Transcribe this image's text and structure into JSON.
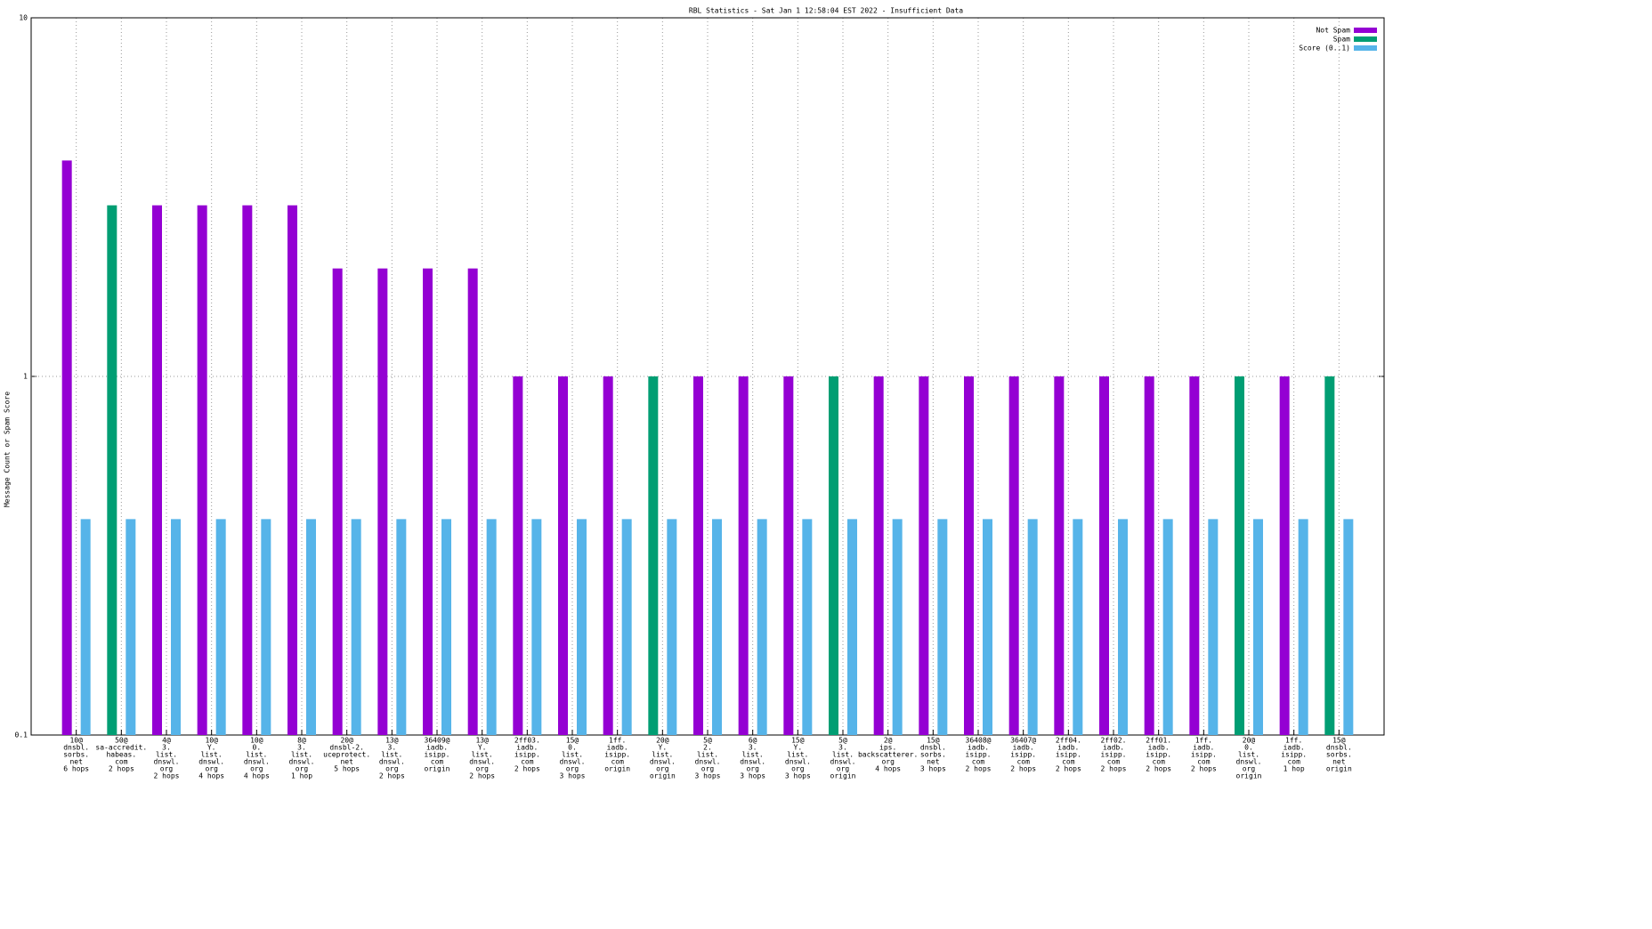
{
  "chart_data": {
    "type": "bar",
    "title": "RBL Statistics - Sat Jan  1 12:58:04 EST 2022 - Insufficient Data",
    "y_label": "Message Count or Spam Score",
    "log_y": true,
    "grid": true,
    "legend_position": "top-right",
    "ylim": [
      0.1,
      10
    ],
    "yticks": [
      0.1,
      1,
      10
    ],
    "categories": [
      [
        "10@",
        "dnsbl.",
        "sorbs.",
        "net",
        "6 hops"
      ],
      [
        "50@",
        "sa-accredit.",
        "habeas.",
        "com",
        "2 hops"
      ],
      [
        "4@",
        "3.",
        "list.",
        "dnswl.",
        "org",
        "2 hops"
      ],
      [
        "10@",
        "Y.",
        "list.",
        "dnswl.",
        "org",
        "4 hops"
      ],
      [
        "10@",
        "0.",
        "list.",
        "dnswl.",
        "org",
        "4 hops"
      ],
      [
        "8@",
        "3.",
        "list.",
        "dnswl.",
        "org",
        "1 hop"
      ],
      [
        "20@",
        "dnsbl-2.",
        "uceprotect.",
        "net",
        "5 hops"
      ],
      [
        "13@",
        "3.",
        "list.",
        "dnswl.",
        "org",
        "2 hops"
      ],
      [
        "36409@",
        "iadb.",
        "isipp.",
        "com",
        "origin"
      ],
      [
        "13@",
        "Y.",
        "list.",
        "dnswl.",
        "org",
        "2 hops"
      ],
      [
        "2ff03.",
        "iadb.",
        "isipp.",
        "com",
        "2 hops"
      ],
      [
        "15@",
        "0.",
        "list.",
        "dnswl.",
        "org",
        "3 hops"
      ],
      [
        "1ff.",
        "iadb.",
        "isipp.",
        "com",
        "origin"
      ],
      [
        "20@",
        "Y.",
        "list.",
        "dnswl.",
        "org",
        "origin"
      ],
      [
        "5@",
        "2.",
        "list.",
        "dnswl.",
        "org",
        "3 hops"
      ],
      [
        "6@",
        "3.",
        "list.",
        "dnswl.",
        "org",
        "3 hops"
      ],
      [
        "15@",
        "Y.",
        "list.",
        "dnswl.",
        "org",
        "3 hops"
      ],
      [
        "5@",
        "3.",
        "list.",
        "dnswl.",
        "org",
        "origin"
      ],
      [
        "2@",
        "ips.",
        "backscatterer.",
        "org",
        "4 hops"
      ],
      [
        "15@",
        "dnsbl.",
        "sorbs.",
        "net",
        "3 hops"
      ],
      [
        "36408@",
        "iadb.",
        "isipp.",
        "com",
        "2 hops"
      ],
      [
        "36407@",
        "iadb.",
        "isipp.",
        "com",
        "2 hops"
      ],
      [
        "2ff04.",
        "iadb.",
        "isipp.",
        "com",
        "2 hops"
      ],
      [
        "2ff02.",
        "iadb.",
        "isipp.",
        "com",
        "2 hops"
      ],
      [
        "2ff01.",
        "iadb.",
        "isipp.",
        "com",
        "2 hops"
      ],
      [
        "1ff.",
        "iadb.",
        "isipp.",
        "com",
        "2 hops"
      ],
      [
        "20@",
        "0.",
        "list.",
        "dnswl.",
        "org",
        "origin"
      ],
      [
        "1ff.",
        "iadb.",
        "isipp.",
        "com",
        "1 hop"
      ],
      [
        "15@",
        "dnsbl.",
        "sorbs.",
        "net",
        "origin"
      ]
    ],
    "series": [
      {
        "name": "Not Spam",
        "color": "#9400d3",
        "values": [
          4,
          null,
          3,
          3,
          3,
          3,
          2,
          2,
          2,
          2,
          1,
          1,
          1,
          null,
          1,
          1,
          1,
          null,
          1,
          1,
          1,
          1,
          1,
          1,
          1,
          1,
          null,
          1,
          null
        ]
      },
      {
        "name": "Spam",
        "color": "#009e73",
        "values": [
          null,
          3,
          null,
          null,
          null,
          null,
          null,
          null,
          null,
          null,
          null,
          null,
          null,
          1,
          null,
          null,
          null,
          1,
          null,
          null,
          null,
          null,
          null,
          null,
          null,
          null,
          1,
          null,
          1
        ]
      },
      {
        "name": "Score (0..1)",
        "color": "#56b4e9",
        "values": [
          0.4,
          0.4,
          0.4,
          0.4,
          0.4,
          0.4,
          0.4,
          0.4,
          0.4,
          0.4,
          0.4,
          0.4,
          0.4,
          0.4,
          0.4,
          0.4,
          0.4,
          0.4,
          0.4,
          0.4,
          0.4,
          0.4,
          0.4,
          0.4,
          0.4,
          0.4,
          0.4,
          0.4,
          0.4
        ]
      }
    ]
  }
}
